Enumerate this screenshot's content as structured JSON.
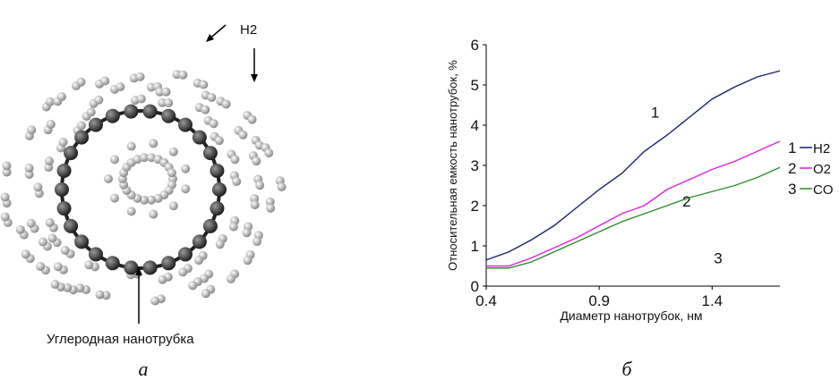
{
  "illustration": {
    "labels": [
      "H2",
      "Углеродная нанотрубка"
    ],
    "captions": [
      "а",
      "б"
    ]
  },
  "chart_data": {
    "type": "line",
    "ylabel": "Относительная емкость нанотрубок, %",
    "xlabel": "Диаметр нанотрубок, нм",
    "x": [
      0.4,
      0.5,
      0.6,
      0.7,
      0.8,
      0.9,
      1.0,
      1.1,
      1.2,
      1.3,
      1.4,
      1.5,
      1.6,
      1.7
    ],
    "xlim": [
      0.4,
      1.7
    ],
    "xticks": [
      0.4,
      0.9,
      1.4
    ],
    "ylim": [
      0,
      6
    ],
    "yticks": [
      0,
      1,
      2,
      3,
      4,
      5,
      6
    ],
    "grid": false,
    "series": [
      {
        "label": "1",
        "name": "H2",
        "color": "#1a1f6e",
        "values": [
          0.65,
          0.85,
          1.15,
          1.5,
          1.95,
          2.4,
          2.8,
          3.35,
          3.75,
          4.2,
          4.65,
          4.95,
          5.2,
          5.35
        ]
      },
      {
        "label": "2",
        "name": "O2",
        "color": "#e020e0",
        "values": [
          0.5,
          0.5,
          0.7,
          0.95,
          1.2,
          1.5,
          1.8,
          2.0,
          2.4,
          2.65,
          2.9,
          3.1,
          3.35,
          3.6
        ]
      },
      {
        "label": "3",
        "name": "CO",
        "color": "#2e8b2e",
        "values": [
          0.45,
          0.45,
          0.6,
          0.85,
          1.1,
          1.35,
          1.6,
          1.8,
          2.0,
          2.2,
          2.35,
          2.5,
          2.7,
          2.95
        ]
      }
    ]
  }
}
